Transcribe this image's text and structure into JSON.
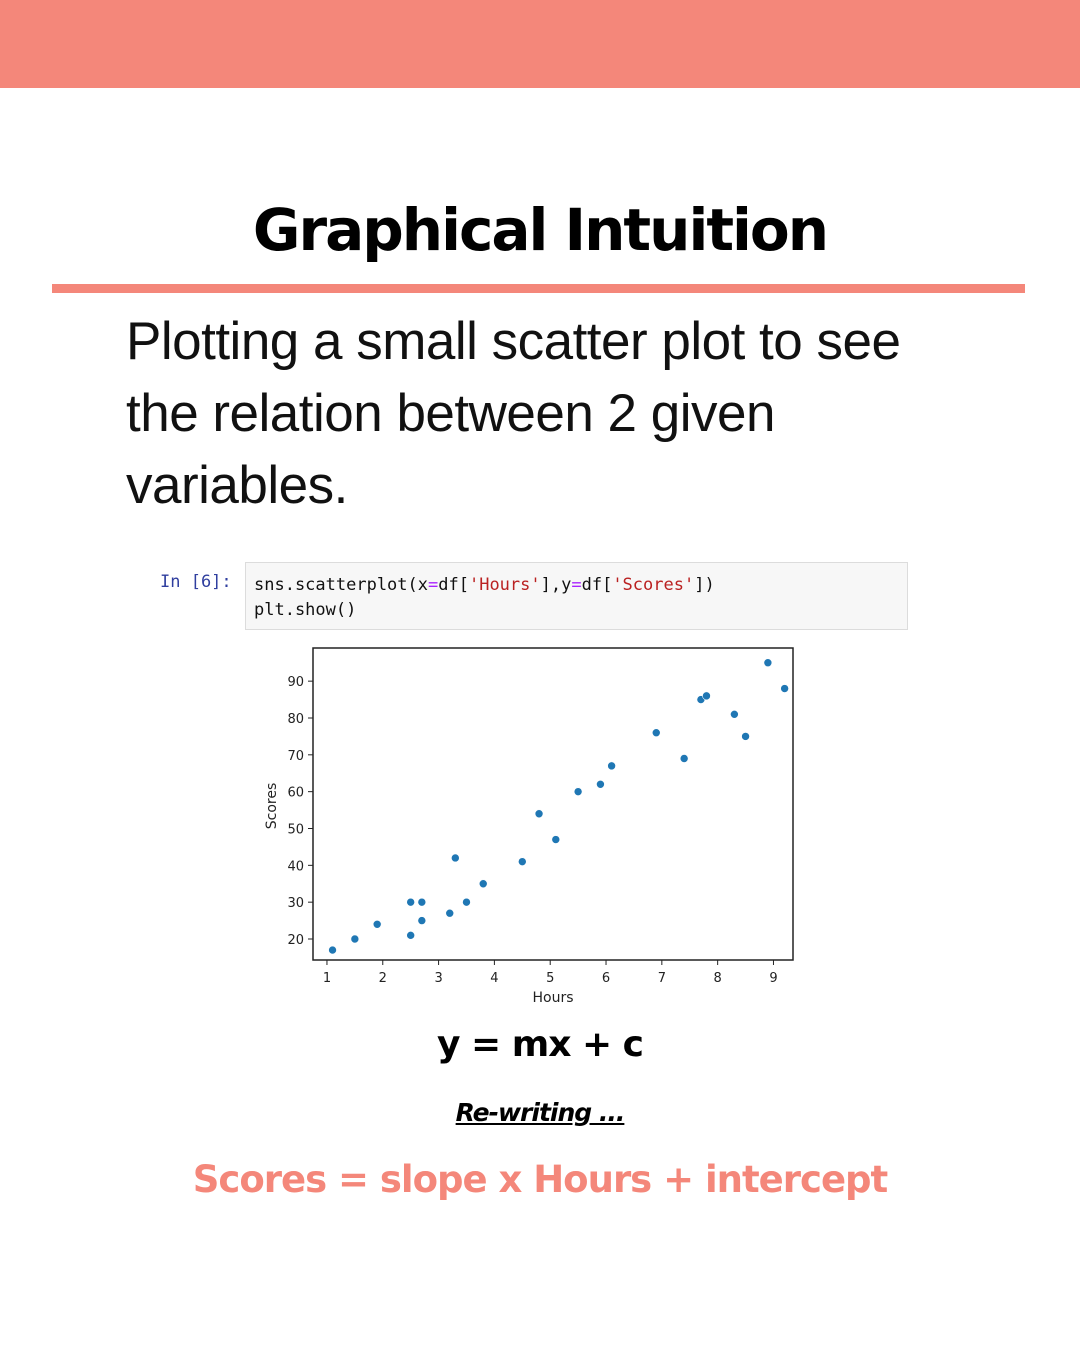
{
  "header": {
    "title": "Graphical Intuition"
  },
  "description": "Plotting a small scatter plot to see the relation between 2 given variables.",
  "notebook": {
    "prompt": "In [6]:",
    "line1_fn": "sns.scatterplot(x",
    "line1_eq1": "=",
    "line1_df1": "df[",
    "line1_str1": "'Hours'",
    "line1_mid": "],y",
    "line1_eq2": "=",
    "line1_df2": "df[",
    "line1_str2": "'Scores'",
    "line1_end": "])",
    "line2": "plt.show()"
  },
  "chart_data": {
    "type": "scatter",
    "title": "",
    "xlabel": "Hours",
    "ylabel": "Scores",
    "xlim": [
      0.75,
      9.35
    ],
    "ylim": [
      14.3,
      99
    ],
    "xticks": [
      1,
      2,
      3,
      4,
      5,
      6,
      7,
      8,
      9
    ],
    "yticks": [
      20,
      30,
      40,
      50,
      60,
      70,
      80,
      90
    ],
    "color": "#1f77b4",
    "x": [
      1.1,
      1.5,
      1.9,
      2.5,
      2.5,
      2.7,
      2.7,
      2.7,
      3.2,
      3.3,
      3.5,
      3.8,
      4.5,
      4.8,
      5.1,
      5.5,
      5.9,
      6.1,
      6.9,
      7.4,
      7.7,
      7.8,
      8.3,
      8.5,
      8.9,
      9.2
    ],
    "y": [
      17,
      20,
      24,
      21,
      30,
      30,
      25,
      30,
      27,
      42,
      30,
      35,
      41,
      54,
      47,
      60,
      62,
      67,
      76,
      69,
      85,
      86,
      81,
      75,
      95,
      88
    ]
  },
  "equation": "y = mx + c",
  "rewriting": "Re-writing ...",
  "formula": "Scores = slope x Hours + intercept"
}
